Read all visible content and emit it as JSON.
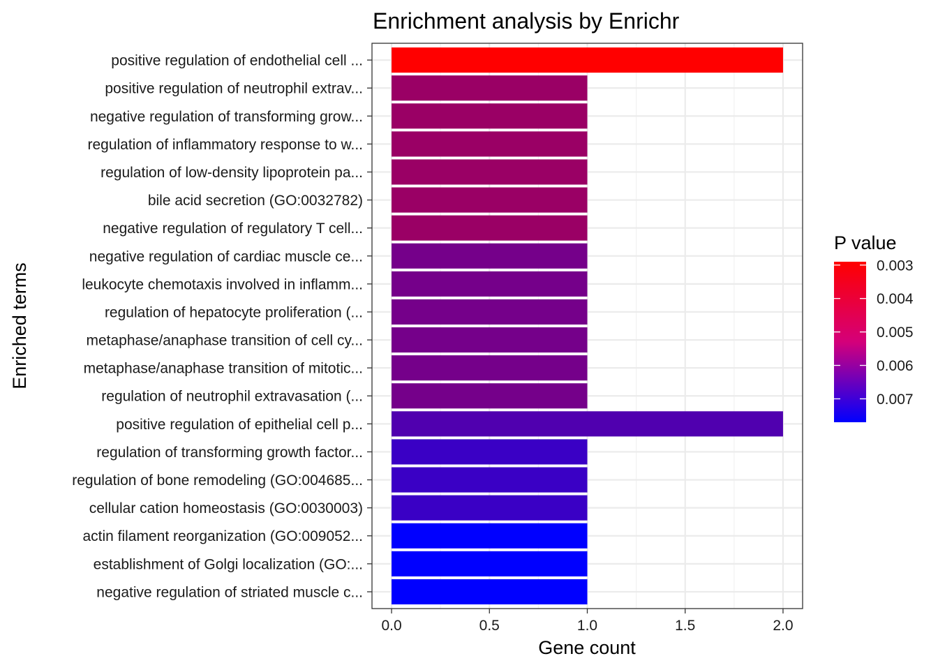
{
  "chart_data": {
    "type": "bar",
    "orientation": "horizontal",
    "title": "Enrichment analysis by Enrichr",
    "xlabel": "Gene count",
    "ylabel": "Enriched terms",
    "xlim": [
      -0.1,
      2.1
    ],
    "xticks": [
      0,
      0.5,
      1,
      1.5,
      2
    ],
    "xtick_labels": [
      "0.0",
      "0.5",
      "1.0",
      "1.5",
      "2.0"
    ],
    "grid": true,
    "legend": {
      "title": "P value",
      "placement": "right",
      "low_color": "#ff0000",
      "high_color": "#0000ff",
      "range": [
        0.0029,
        0.0077
      ],
      "ticks": [
        0.003,
        0.004,
        0.005,
        0.006,
        0.007
      ],
      "tick_labels": [
        "0.003",
        "0.004",
        "0.005",
        "0.006",
        "0.007"
      ]
    },
    "categories": [
      "positive regulation of endothelial cell ...",
      "positive regulation of neutrophil extrav...",
      "negative regulation of transforming grow...",
      "regulation of inflammatory response to w...",
      "regulation of low-density lipoprotein pa...",
      "bile acid secretion (GO:0032782)",
      "negative regulation of regulatory T cell...",
      "negative regulation of cardiac muscle ce...",
      "leukocyte chemotaxis involved in inflamm...",
      "regulation of hepatocyte proliferation (...",
      "metaphase/anaphase transition of cell cy...",
      "metaphase/anaphase transition of mitotic...",
      "regulation of neutrophil extravasation (...",
      "positive regulation of epithelial cell p...",
      "regulation of transforming growth factor...",
      "regulation of bone remodeling (GO:004685...",
      "cellular cation homeostasis (GO:0030003)",
      "actin filament reorganization (GO:009052...",
      "establishment of Golgi localization (GO:...",
      "negative regulation of striated muscle c..."
    ],
    "values": [
      2,
      1,
      1,
      1,
      1,
      1,
      1,
      1,
      1,
      1,
      1,
      1,
      1,
      2,
      1,
      1,
      1,
      1,
      1,
      1
    ],
    "p_values": [
      0.0029,
      0.0048,
      0.0048,
      0.0048,
      0.0048,
      0.0048,
      0.0048,
      0.0055,
      0.0055,
      0.0055,
      0.0055,
      0.0055,
      0.0055,
      0.0062,
      0.0066,
      0.0066,
      0.0066,
      0.0077,
      0.0077,
      0.0077
    ]
  }
}
